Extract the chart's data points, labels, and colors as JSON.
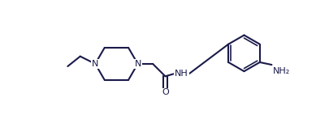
{
  "bg_color": "#ffffff",
  "line_color": "#1a1a4a",
  "line_width": 1.5,
  "font_size": 8.0,
  "figsize": [
    4.06,
    1.57
  ],
  "dpi": 100,
  "xlim": [
    -5,
    401
  ],
  "ylim": [
    0,
    157
  ]
}
